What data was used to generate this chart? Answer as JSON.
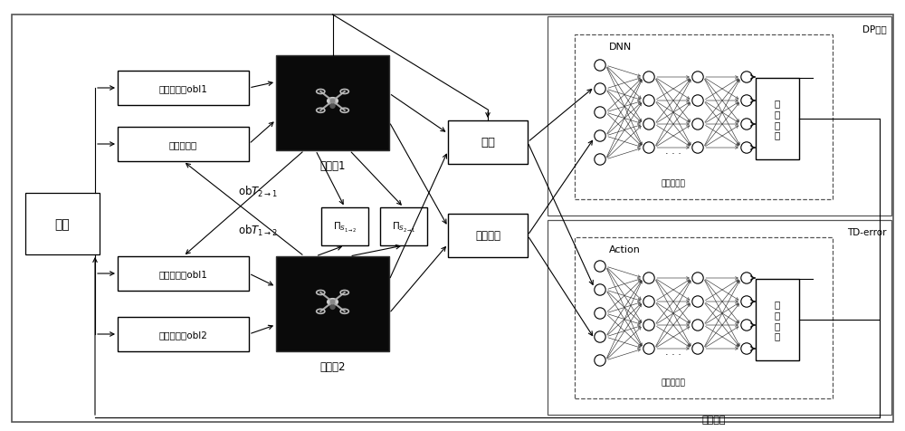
{
  "bg_color": "#ffffff",
  "fig_width": 10.0,
  "fig_height": 4.77,
  "labels": {
    "env": "环境",
    "obs1_1": "局部观测值obl1",
    "suggest": "建议观测值",
    "obs2_1": "局部观测值obl1",
    "obs2_2": "局部观测值obl2",
    "uav1": "无人机1",
    "uav2": "无人机2",
    "reward": "奖励",
    "joint_obs": "联合观测",
    "dnn_label": "DNN",
    "dnn_hidden": "隐层神经元",
    "action_label": "Action",
    "action_hidden": "隐层神经元",
    "output1": "策\n略\n输\n出",
    "output2": "动\n作\n输\n出",
    "dp_opt": "DP优化",
    "td_error": "TD-error",
    "joint_action": "联合动作",
    "obt21": "obT",
    "obt12": "obT"
  }
}
